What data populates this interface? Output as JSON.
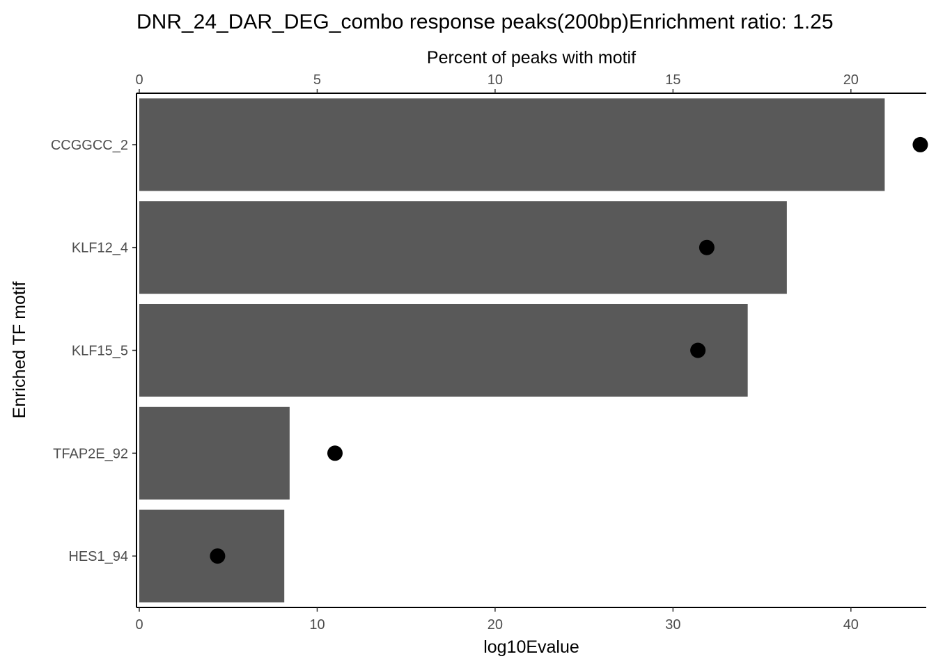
{
  "chart_data": {
    "type": "bar",
    "title": "DNR_24_DAR_DEG_combo response peaks(200bp)Enrichment ratio: 1.25",
    "ylabel": "Enriched TF motif",
    "categories": [
      "CCGGCC_2",
      "KLF12_4",
      "KLF15_5",
      "TFAP2E_92",
      "HES1_94"
    ],
    "series": [
      {
        "values": [
          41.9,
          36.4,
          34.2,
          8.45,
          8.15
        ]
      },
      {
        "type": "scatter",
        "values": [
          21.95,
          15.95,
          15.7,
          5.5,
          2.2
        ]
      }
    ],
    "x_axis": {
      "label": "log10Evalue",
      "position": "bottom",
      "range": [
        0,
        44
      ],
      "ticks": [
        0,
        10,
        20,
        30,
        40
      ]
    },
    "x2_axis": {
      "label": "Percent of peaks with motif",
      "position": "top",
      "range": [
        0,
        22
      ],
      "ticks": [
        0,
        5,
        10,
        15,
        20
      ]
    },
    "colors": {
      "bar": "#595959",
      "point": "#000000"
    },
    "grid": false,
    "legend": "none"
  }
}
